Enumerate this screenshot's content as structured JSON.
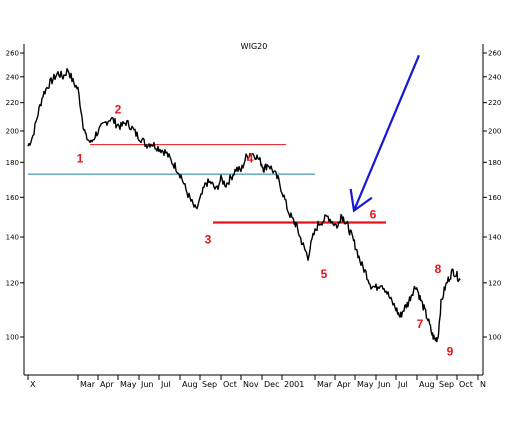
{
  "chart_data": {
    "type": "line",
    "title": "WIG20",
    "xlabel": "",
    "ylabel": "",
    "ylim": [
      88,
      268
    ],
    "yscale": "log",
    "grid": false,
    "colors": {
      "price": "#000000",
      "support_resistance": "#e8141b",
      "trend": "#1a7f9b",
      "arrow": "#1616d6",
      "wave_labels": "#e8141b"
    },
    "y_ticks": [
      100,
      120,
      140,
      160,
      180,
      200,
      220,
      240,
      260
    ],
    "y_tick_labels": [
      "100",
      "120",
      "140",
      "160",
      "180",
      "200",
      "220",
      "240",
      "260"
    ],
    "x_tick_labels": [
      "X",
      "Mar",
      "Apr",
      "May",
      "Jun",
      "Jul",
      "Aug",
      "Sep",
      "Oct",
      "Nov",
      "Dec",
      "2001",
      "Mar",
      "Apr",
      "May",
      "Jun",
      "Jul",
      "Aug",
      "Sep",
      "Oct",
      "N"
    ],
    "x_ticks": [
      0,
      50,
      70,
      90,
      111,
      131,
      152,
      172,
      193,
      213,
      234,
      254,
      287,
      307,
      327,
      348,
      368,
      389,
      409,
      429,
      450
    ],
    "x_range": [
      0,
      452
    ],
    "series": [
      {
        "points": [
          [
            0,
            190
          ],
          [
            5,
            197
          ],
          [
            10,
            212
          ],
          [
            15,
            226
          ],
          [
            20,
            233
          ],
          [
            25,
            238
          ],
          [
            30,
            243
          ],
          [
            35,
            240
          ],
          [
            40,
            246
          ],
          [
            45,
            236
          ],
          [
            50,
            230
          ],
          [
            55,
            205
          ],
          [
            58,
            196
          ],
          [
            63,
            192
          ],
          [
            68,
            198
          ],
          [
            73,
            202
          ],
          [
            78,
            206
          ],
          [
            83,
            209
          ],
          [
            88,
            205
          ],
          [
            93,
            203
          ],
          [
            98,
            206
          ],
          [
            103,
            203
          ],
          [
            108,
            198
          ],
          [
            113,
            195
          ],
          [
            118,
            191
          ],
          [
            123,
            192
          ],
          [
            128,
            190
          ],
          [
            133,
            188
          ],
          [
            138,
            186
          ],
          [
            143,
            181
          ],
          [
            148,
            177
          ],
          [
            153,
            172
          ],
          [
            158,
            164
          ],
          [
            163,
            158
          ],
          [
            168,
            153
          ],
          [
            173,
            160
          ],
          [
            178,
            168
          ],
          [
            183,
            168
          ],
          [
            188,
            164
          ],
          [
            193,
            170
          ],
          [
            198,
            167
          ],
          [
            203,
            171
          ],
          [
            208,
            176
          ],
          [
            213,
            175
          ],
          [
            218,
            183
          ],
          [
            223,
            186
          ],
          [
            228,
            184
          ],
          [
            233,
            180
          ],
          [
            236,
            176
          ],
          [
            240,
            179
          ],
          [
            245,
            175
          ],
          [
            250,
            170
          ],
          [
            255,
            162
          ],
          [
            260,
            153
          ],
          [
            265,
            148
          ],
          [
            268,
            146
          ],
          [
            272,
            140
          ],
          [
            276,
            135
          ],
          [
            280,
            131
          ],
          [
            285,
            140
          ],
          [
            290,
            146
          ],
          [
            295,
            148
          ],
          [
            300,
            150
          ],
          [
            305,
            147
          ],
          [
            310,
            145
          ],
          [
            313,
            151
          ],
          [
            317,
            148
          ],
          [
            320,
            145
          ],
          [
            324,
            140
          ],
          [
            328,
            135
          ],
          [
            333,
            128
          ],
          [
            338,
            124
          ],
          [
            343,
            119
          ],
          [
            348,
            118
          ],
          [
            353,
            120
          ],
          [
            358,
            117
          ],
          [
            363,
            113
          ],
          [
            368,
            110
          ],
          [
            372,
            107
          ],
          [
            376,
            110
          ],
          [
            380,
            112
          ],
          [
            384,
            116
          ],
          [
            388,
            119
          ],
          [
            392,
            114
          ],
          [
            396,
            110
          ],
          [
            400,
            106
          ],
          [
            404,
            101
          ],
          [
            407,
            99
          ],
          [
            410,
            100
          ],
          [
            413,
            112
          ],
          [
            417,
            118
          ],
          [
            421,
            122
          ],
          [
            425,
            125
          ],
          [
            429,
            123
          ],
          [
            432,
            121
          ]
        ]
      }
    ],
    "annotations": {
      "wave_labels": [
        {
          "text": "1",
          "x": 52,
          "y": 180
        },
        {
          "text": "2",
          "x": 90,
          "y": 212
        },
        {
          "text": "3",
          "x": 180,
          "y": 137
        },
        {
          "text": "4",
          "x": 222,
          "y": 180
        },
        {
          "text": "5",
          "x": 296,
          "y": 122
        },
        {
          "text": "6",
          "x": 345,
          "y": 149
        },
        {
          "text": "7",
          "x": 392,
          "y": 103
        },
        {
          "text": "8",
          "x": 410,
          "y": 124
        },
        {
          "text": "9",
          "x": 422,
          "y": 94
        }
      ],
      "hlines": [
        {
          "y": 191,
          "x_start": 62,
          "x_end": 258,
          "color_key": "support_resistance",
          "weight": "thin"
        },
        {
          "y": 173,
          "x_start": 0,
          "x_end": 287,
          "color_key": "trend",
          "weight": "thin"
        },
        {
          "y": 147,
          "x_start": 185,
          "x_end": 358,
          "color_key": "support_resistance",
          "weight": "thick"
        }
      ],
      "arrows": [
        {
          "from": [
            391,
            258
          ],
          "to": [
            326,
            153
          ],
          "color_key": "arrow",
          "style": "long-thin"
        },
        {
          "from": [
            324,
            160
          ],
          "to": [
            328,
            150
          ],
          "color_key": "arrow",
          "style": "chevron"
        }
      ]
    }
  }
}
